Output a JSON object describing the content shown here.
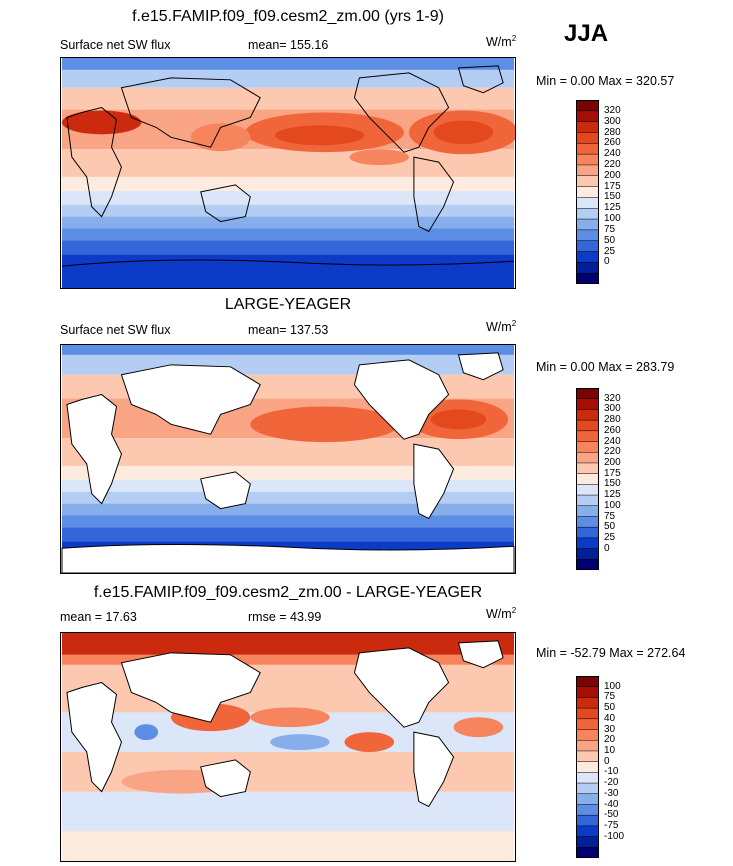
{
  "season": "JJA",
  "panels": [
    {
      "title": "f.e15.FAMIP.f09_f09.cesm2_zm.00 (yrs 1-9)",
      "left_label": "Surface net SW flux",
      "center_label": "mean= 155.16",
      "units": "W/m",
      "units_sup": "2",
      "minmax": "Min =   0.00 Max = 320.57"
    },
    {
      "title": "LARGE-YEAGER",
      "left_label": "Surface net SW flux",
      "center_label": "mean= 137.53",
      "units": "W/m",
      "units_sup": "2",
      "minmax": "Min =   0.00 Max = 283.79"
    },
    {
      "title": "f.e15.FAMIP.f09_f09.cesm2_zm.00 - LARGE-YEAGER",
      "left_label": "mean =  17.63",
      "center_label": "rmse =  43.99",
      "units": "W/m",
      "units_sup": "2",
      "minmax": "Min = -52.79 Max = 272.64"
    }
  ],
  "chart_data": [
    {
      "type": "heatmap",
      "title": "f.e15.FAMIP.f09_f09.cesm2_zm.00 (yrs 1-9)",
      "variable": "Surface net SW flux",
      "units": "W/m2",
      "mean": 155.16,
      "min": 0.0,
      "max": 320.57,
      "colorbar_levels": [
        "320",
        "300",
        "280",
        "260",
        "240",
        "220",
        "200",
        "175",
        "150",
        "125",
        "100",
        "75",
        "50",
        "25",
        "0"
      ],
      "colors": [
        "#7a0403",
        "#a50f06",
        "#cc2a0e",
        "#e4481d",
        "#f0653a",
        "#f6855d",
        "#f9a585",
        "#fcc9b0",
        "#fdebe0",
        "#dbe7f8",
        "#b3cdf3",
        "#85aeeb",
        "#5b8ee4",
        "#3366d9",
        "#0c3bc7",
        "#001f99",
        "#000070"
      ]
    },
    {
      "type": "heatmap",
      "title": "LARGE-YEAGER",
      "variable": "Surface net SW flux",
      "units": "W/m2",
      "mean": 137.53,
      "min": 0.0,
      "max": 283.79,
      "colorbar_levels": [
        "320",
        "300",
        "280",
        "260",
        "240",
        "220",
        "200",
        "175",
        "150",
        "125",
        "100",
        "75",
        "50",
        "25",
        "0"
      ],
      "colors": [
        "#7a0403",
        "#a50f06",
        "#cc2a0e",
        "#e4481d",
        "#f0653a",
        "#f6855d",
        "#f9a585",
        "#fcc9b0",
        "#fdebe0",
        "#dbe7f8",
        "#b3cdf3",
        "#85aeeb",
        "#5b8ee4",
        "#3366d9",
        "#0c3bc7",
        "#001f99",
        "#000070"
      ]
    },
    {
      "type": "heatmap",
      "title": "f.e15.FAMIP.f09_f09.cesm2_zm.00 - LARGE-YEAGER",
      "units": "W/m2",
      "mean": 17.63,
      "rmse": 43.99,
      "min": -52.79,
      "max": 272.64,
      "colorbar_levels": [
        "100",
        "75",
        "50",
        "40",
        "30",
        "20",
        "10",
        "0",
        "-10",
        "-20",
        "-30",
        "-40",
        "-50",
        "-75",
        "-100"
      ],
      "colors": [
        "#7a0403",
        "#a50f06",
        "#cc2a0e",
        "#e4481d",
        "#f0653a",
        "#f6855d",
        "#f9a585",
        "#fcc9b0",
        "#fdebe0",
        "#dbe7f8",
        "#b3cdf3",
        "#85aeeb",
        "#5b8ee4",
        "#3366d9",
        "#0c3bc7",
        "#001f99",
        "#000070"
      ]
    }
  ]
}
